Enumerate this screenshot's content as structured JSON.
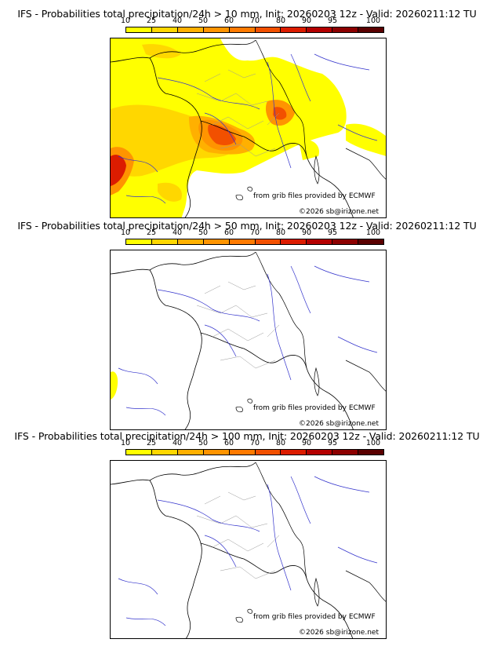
{
  "colorbar": {
    "labels": [
      "10",
      "25",
      "40",
      "50",
      "60",
      "70",
      "80",
      "90",
      "95",
      "100"
    ],
    "colors": [
      "#ffff00",
      "#ffd700",
      "#ffb000",
      "#ff9400",
      "#ff7a00",
      "#f25000",
      "#dc1c00",
      "#b40000",
      "#8c0000",
      "#5a0000"
    ]
  },
  "panels": [
    {
      "title": "IFS - Probabilities total precipitation/24h > 10 mm, Init: 20260203 12z - Valid: 20260211:12 TU",
      "credit": "from grib files provided by ECMWF",
      "copyright": "©2026 sb@irizone.net"
    },
    {
      "title": "IFS - Probabilities total precipitation/24h > 50 mm, Init: 20260203 12z - Valid: 20260211:12 TU",
      "credit": "from grib files provided by ECMWF",
      "copyright": "©2026 sb@irizone.net"
    },
    {
      "title": "IFS - Probabilities total precipitation/24h > 100 mm, Init: 20260203 12z - Valid: 20260211:12 TU",
      "credit": "from grib files provided by ECMWF",
      "copyright": "©2026 sb@irizone.net"
    }
  ]
}
